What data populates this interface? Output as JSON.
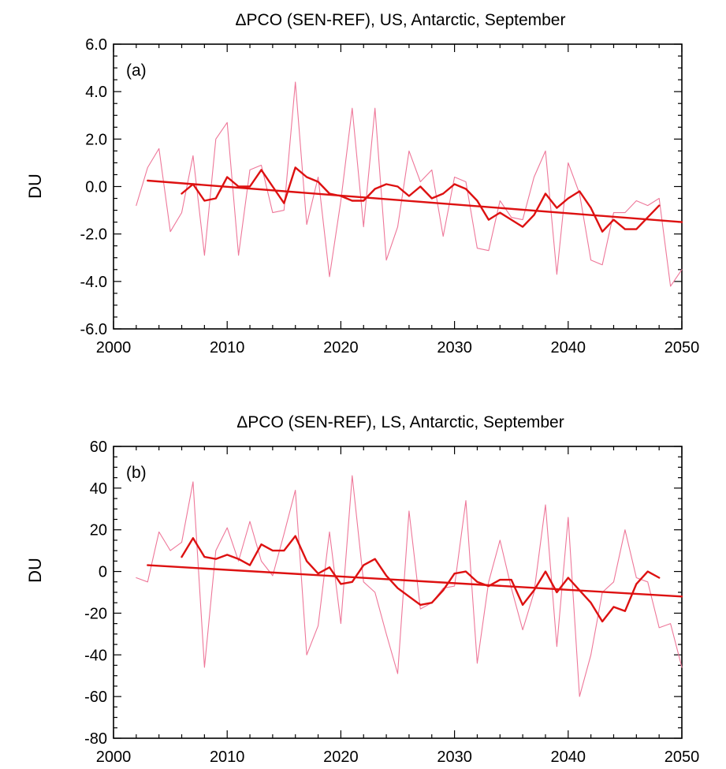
{
  "chart_data": [
    {
      "type": "line",
      "panel_label": "(a)",
      "title": "ΔPCO (SEN-REF), US, Antarctic, September",
      "xlabel": "",
      "ylabel": "DU",
      "xlim": [
        2000,
        2050
      ],
      "ylim": [
        -6,
        6
      ],
      "xticks": [
        2000,
        2010,
        2020,
        2030,
        2040,
        2050
      ],
      "yticks": [
        -6,
        -4,
        -2,
        0,
        2,
        4,
        6
      ],
      "x_tick_labels": [
        "2000",
        "2010",
        "2020",
        "2030",
        "2040",
        "2050"
      ],
      "y_tick_labels": [
        "-6.0",
        "-4.0",
        "-2.0",
        "0.0",
        "2.0",
        "4.0",
        "6.0"
      ],
      "grid": false,
      "series": [
        {
          "role": "annual",
          "color": "#ee7799",
          "x": [
            2002,
            2003,
            2004,
            2005,
            2006,
            2007,
            2008,
            2009,
            2010,
            2011,
            2012,
            2013,
            2014,
            2015,
            2016,
            2017,
            2018,
            2019,
            2020,
            2021,
            2022,
            2023,
            2024,
            2025,
            2026,
            2027,
            2028,
            2029,
            2030,
            2031,
            2032,
            2033,
            2034,
            2035,
            2036,
            2037,
            2038,
            2039,
            2040,
            2041,
            2042,
            2043,
            2044,
            2045,
            2046,
            2047,
            2048,
            2049,
            2050
          ],
          "y": [
            -0.8,
            0.8,
            1.6,
            -1.9,
            -1.1,
            1.3,
            -2.9,
            2.0,
            2.7,
            -2.9,
            0.7,
            0.9,
            -1.1,
            -1.0,
            4.4,
            -1.6,
            0.4,
            -3.8,
            -0.6,
            3.3,
            -1.7,
            3.3,
            -3.1,
            -1.7,
            1.5,
            0.2,
            0.7,
            -2.1,
            0.4,
            0.2,
            -2.6,
            -2.7,
            -0.6,
            -1.3,
            -1.4,
            0.4,
            1.5,
            -3.7,
            1.0,
            -0.3,
            -3.1,
            -3.3,
            -1.1,
            -1.1,
            -0.6,
            -0.8,
            -0.5,
            -4.2,
            -3.5
          ]
        },
        {
          "role": "running-mean",
          "color": "#dd1111",
          "x": [
            2006,
            2007,
            2008,
            2009,
            2010,
            2011,
            2012,
            2013,
            2014,
            2015,
            2016,
            2017,
            2018,
            2019,
            2020,
            2021,
            2022,
            2023,
            2024,
            2025,
            2026,
            2027,
            2028,
            2029,
            2030,
            2031,
            2032,
            2033,
            2034,
            2035,
            2036,
            2037,
            2038,
            2039,
            2040,
            2041,
            2042,
            2043,
            2044,
            2045,
            2046,
            2047,
            2048
          ],
          "y": [
            -0.3,
            0.1,
            -0.6,
            -0.5,
            0.4,
            0.0,
            0.0,
            0.7,
            0.0,
            -0.7,
            0.8,
            0.4,
            0.2,
            -0.3,
            -0.4,
            -0.6,
            -0.6,
            -0.1,
            0.1,
            0.0,
            -0.4,
            0.0,
            -0.5,
            -0.3,
            0.1,
            -0.1,
            -0.6,
            -1.4,
            -1.1,
            -1.4,
            -1.7,
            -1.2,
            -0.3,
            -0.9,
            -0.5,
            -0.2,
            -0.9,
            -1.9,
            -1.4,
            -1.8,
            -1.8,
            -1.3,
            -0.8
          ]
        },
        {
          "role": "trend",
          "color": "#dd1111",
          "x": [
            2003,
            2050
          ],
          "y": [
            0.25,
            -1.5
          ]
        }
      ]
    },
    {
      "type": "line",
      "panel_label": "(b)",
      "title": "ΔPCO (SEN-REF), LS, Antarctic, September",
      "xlabel": "",
      "ylabel": "DU",
      "xlim": [
        2000,
        2050
      ],
      "ylim": [
        -80,
        60
      ],
      "xticks": [
        2000,
        2010,
        2020,
        2030,
        2040,
        2050
      ],
      "yticks": [
        -80,
        -60,
        -40,
        -20,
        0,
        20,
        40,
        60
      ],
      "x_tick_labels": [
        "2000",
        "2010",
        "2020",
        "2030",
        "2040",
        "2050"
      ],
      "y_tick_labels": [
        "-80",
        "-60",
        "-40",
        "-20",
        "0",
        "20",
        "40",
        "60"
      ],
      "grid": false,
      "series": [
        {
          "role": "annual",
          "color": "#ee7799",
          "x": [
            2002,
            2003,
            2004,
            2005,
            2006,
            2007,
            2008,
            2009,
            2010,
            2011,
            2012,
            2013,
            2014,
            2015,
            2016,
            2017,
            2018,
            2019,
            2020,
            2021,
            2022,
            2023,
            2024,
            2025,
            2026,
            2027,
            2028,
            2029,
            2030,
            2031,
            2032,
            2033,
            2034,
            2035,
            2036,
            2037,
            2038,
            2039,
            2040,
            2041,
            2042,
            2043,
            2044,
            2045,
            2046,
            2047,
            2048,
            2049,
            2050
          ],
          "y": [
            -3,
            -5,
            19,
            10,
            14,
            43,
            -46,
            10,
            21,
            5,
            24,
            5,
            -2,
            18,
            39,
            -40,
            -26,
            19,
            -25,
            46,
            -5,
            -10,
            -30,
            -49,
            29,
            -18,
            -15,
            -8,
            -7,
            34,
            -44,
            -5,
            15,
            -8,
            -28,
            -10,
            32,
            -36,
            26,
            -60,
            -40,
            -10,
            -5,
            20,
            -3,
            -5,
            -27,
            -25,
            -46
          ]
        },
        {
          "role": "running-mean",
          "color": "#dd1111",
          "x": [
            2006,
            2007,
            2008,
            2009,
            2010,
            2011,
            2012,
            2013,
            2014,
            2015,
            2016,
            2017,
            2018,
            2019,
            2020,
            2021,
            2022,
            2023,
            2024,
            2025,
            2026,
            2027,
            2028,
            2029,
            2030,
            2031,
            2032,
            2033,
            2034,
            2035,
            2036,
            2037,
            2038,
            2039,
            2040,
            2041,
            2042,
            2043,
            2044,
            2045,
            2046,
            2047,
            2048
          ],
          "y": [
            7,
            16,
            7,
            6,
            8,
            6,
            3,
            13,
            10,
            10,
            17,
            5,
            -1,
            2,
            -6,
            -5,
            3,
            6,
            -2,
            -8,
            -12,
            -16,
            -15,
            -9,
            -1,
            0,
            -5,
            -7,
            -4,
            -4,
            -16,
            -9,
            0,
            -10,
            -3,
            -9,
            -15,
            -24,
            -17,
            -19,
            -6,
            0,
            -3
          ]
        },
        {
          "role": "trend",
          "color": "#dd1111",
          "x": [
            2003,
            2050
          ],
          "y": [
            3,
            -12
          ]
        }
      ]
    }
  ]
}
